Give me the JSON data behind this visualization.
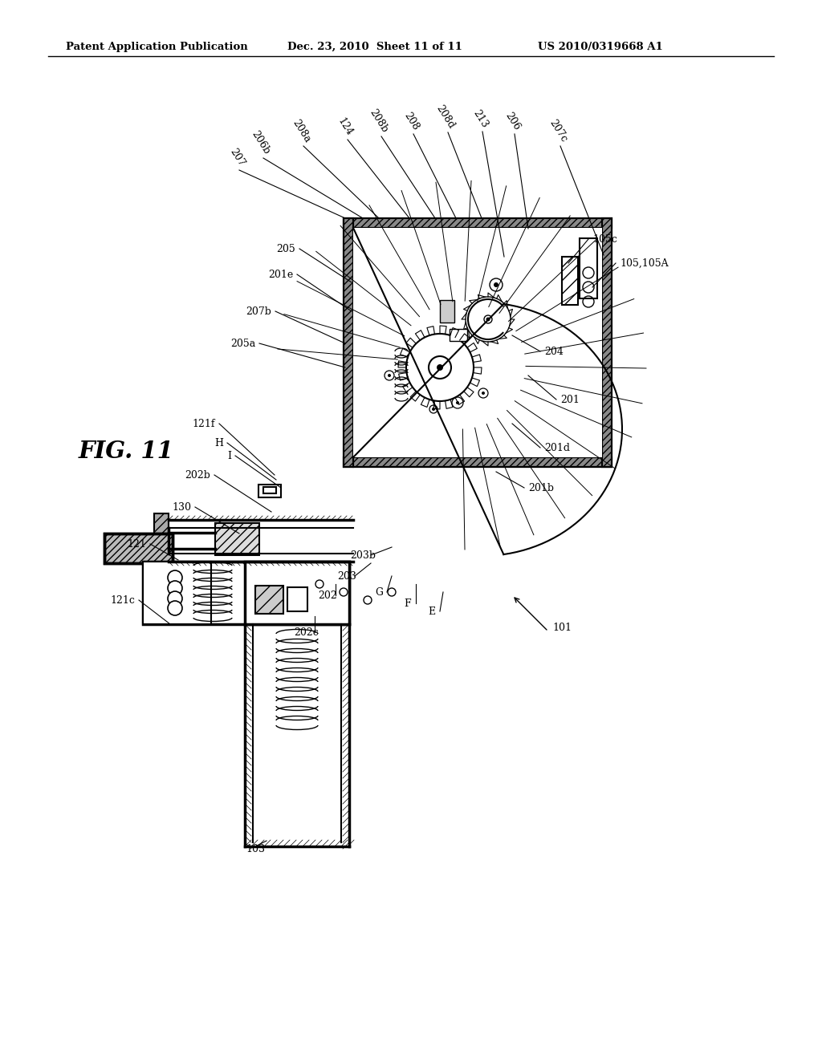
{
  "bg_color": "#ffffff",
  "header_left": "Patent Application Publication",
  "header_mid": "Dec. 23, 2010  Sheet 11 of 11",
  "header_right": "US 2010/0319668 A1",
  "fig_label": "FIG. 11",
  "top_labels": [
    [
      "207",
      295,
      210,
      430,
      272
    ],
    [
      "206b",
      325,
      195,
      452,
      272
    ],
    [
      "208a",
      375,
      180,
      472,
      272
    ],
    [
      "124",
      430,
      172,
      510,
      272
    ],
    [
      "208b",
      472,
      168,
      542,
      272
    ],
    [
      "208",
      512,
      165,
      568,
      272
    ],
    [
      "208d",
      555,
      163,
      600,
      272
    ],
    [
      "213",
      598,
      162,
      628,
      320
    ],
    [
      "206",
      638,
      165,
      658,
      285
    ],
    [
      "207c",
      695,
      180,
      752,
      318
    ]
  ],
  "left_labels": [
    [
      "205",
      368,
      310,
      438,
      352
    ],
    [
      "201e",
      365,
      342,
      438,
      388
    ],
    [
      "207b",
      338,
      388,
      430,
      428
    ],
    [
      "205a",
      318,
      428,
      430,
      458
    ],
    [
      "121f",
      268,
      528,
      342,
      592
    ],
    [
      "H",
      278,
      552,
      344,
      598
    ],
    [
      "I",
      288,
      568,
      350,
      608
    ],
    [
      "202b",
      262,
      592,
      338,
      638
    ],
    [
      "130",
      238,
      632,
      298,
      665
    ],
    [
      "121",
      182,
      678,
      222,
      698
    ],
    [
      "121c",
      168,
      748,
      212,
      778
    ]
  ],
  "bottom_labels": [
    [
      "202c",
      382,
      788,
      392,
      768
    ],
    [
      "202",
      408,
      742,
      418,
      728
    ],
    [
      "203",
      432,
      718,
      462,
      702
    ],
    [
      "G",
      472,
      738,
      488,
      718
    ],
    [
      "203b",
      452,
      692,
      488,
      682
    ],
    [
      "F",
      508,
      752,
      518,
      728
    ],
    [
      "E",
      538,
      762,
      552,
      738
    ],
    [
      "103",
      318,
      1058,
      332,
      1048
    ],
    [
      "101",
      688,
      782,
      638,
      742
    ]
  ],
  "right_labels": [
    [
      "201b",
      658,
      608,
      618,
      588
    ],
    [
      "201d",
      678,
      558,
      638,
      528
    ],
    [
      "201",
      698,
      498,
      658,
      468
    ],
    [
      "204",
      678,
      438,
      638,
      418
    ],
    [
      "105c",
      738,
      298,
      708,
      328
    ],
    [
      "105,105A",
      772,
      328,
      738,
      358
    ]
  ]
}
